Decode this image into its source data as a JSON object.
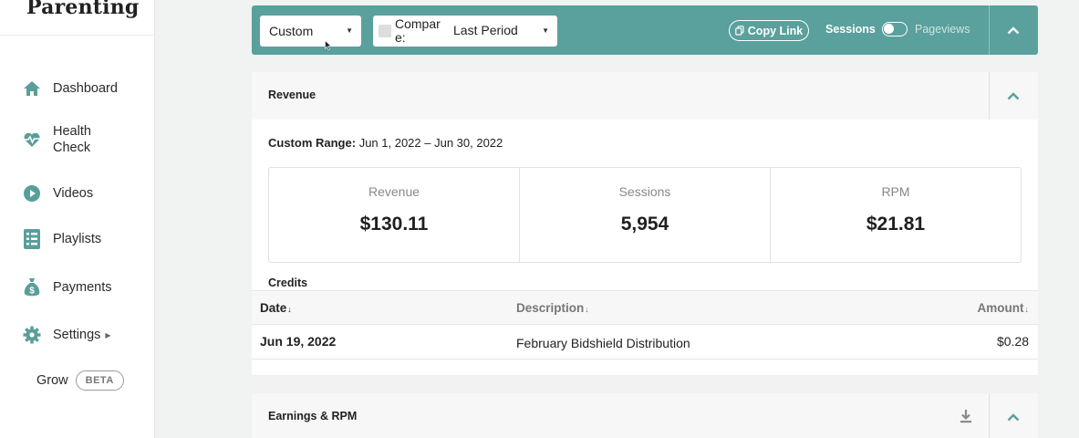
{
  "brand": {
    "name": "Parenting"
  },
  "sidebar": {
    "items": [
      {
        "label": "Dashboard",
        "icon": "home-icon"
      },
      {
        "label": "Health Check",
        "icon": "heartbeat-icon"
      },
      {
        "label": "Videos",
        "icon": "play-icon"
      },
      {
        "label": "Playlists",
        "icon": "playlist-icon"
      },
      {
        "label": "Payments",
        "icon": "money-bag-icon"
      },
      {
        "label": "Settings",
        "icon": "gear-icon"
      }
    ],
    "grow": {
      "label": "Grow",
      "badge": "BETA"
    }
  },
  "filters": {
    "range_select": "Custom",
    "compare_label": "Compare:",
    "compare_select": "Last Period",
    "copy_link": "Copy Link",
    "toggle_left": "Sessions",
    "toggle_right": "Pageviews"
  },
  "revenue": {
    "title": "Revenue",
    "range_label": "Custom Range:",
    "range_value": "Jun 1, 2022 – Jun 30, 2022",
    "stats": [
      {
        "label": "Revenue",
        "value": "$130.11"
      },
      {
        "label": "Sessions",
        "value": "5,954"
      },
      {
        "label": "RPM",
        "value": "$21.81"
      }
    ],
    "credits": {
      "title": "Credits",
      "columns": [
        "Date",
        "Description",
        "Amount"
      ],
      "rows": [
        {
          "date": "Jun 19, 2022",
          "description": "February Bidshield Distribution",
          "amount": "$0.28"
        }
      ]
    }
  },
  "earnings": {
    "title": "Earnings & RPM"
  },
  "colors": {
    "accent": "#5aa09c",
    "nav_icon": "#5a9e9a"
  }
}
